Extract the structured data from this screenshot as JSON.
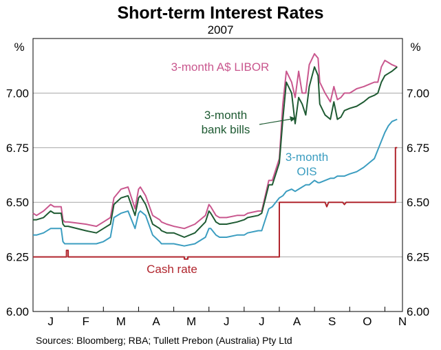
{
  "chart_data": {
    "type": "line",
    "title": "Short-term Interest Rates",
    "subtitle": "2007",
    "y_unit_left": "%",
    "y_unit_right": "%",
    "ylim": [
      6.0,
      7.25
    ],
    "yticks": [
      "6.00",
      "6.25",
      "6.50",
      "6.75",
      "7.00"
    ],
    "xlim": [
      0,
      10.5
    ],
    "xticks": [
      "J",
      "F",
      "M",
      "A",
      "M",
      "J",
      "J",
      "A",
      "S",
      "O",
      "N"
    ],
    "source": "Sources: Bloomberg; RBA; Tullett Prebon (Australia) Pty Ltd",
    "series": [
      {
        "name": "3-month A$ LIBOR",
        "label_lines": [
          "3-month A$ LIBOR"
        ],
        "color": "#c9578e",
        "x": [
          0,
          0.1,
          0.3,
          0.5,
          0.6,
          0.8,
          0.85,
          0.9,
          1.0,
          1.5,
          1.8,
          2.0,
          2.2,
          2.3,
          2.5,
          2.7,
          2.9,
          3.0,
          3.05,
          3.2,
          3.4,
          3.6,
          3.65,
          3.8,
          4.0,
          4.3,
          4.6,
          4.9,
          5.0,
          5.05,
          5.2,
          5.3,
          5.5,
          5.8,
          6.0,
          6.1,
          6.4,
          6.5,
          6.7,
          6.8,
          7.0,
          7.1,
          7.2,
          7.35,
          7.45,
          7.55,
          7.65,
          7.75,
          7.85,
          8.0,
          8.1,
          8.15,
          8.3,
          8.45,
          8.55,
          8.65,
          8.75,
          8.85,
          9.0,
          9.2,
          9.4,
          9.55,
          9.7,
          9.8,
          9.9,
          10.0,
          10.1,
          10.2,
          10.35
        ],
        "values": [
          6.45,
          6.44,
          6.46,
          6.49,
          6.48,
          6.48,
          6.42,
          6.41,
          6.41,
          6.4,
          6.39,
          6.41,
          6.43,
          6.52,
          6.56,
          6.57,
          6.47,
          6.56,
          6.57,
          6.53,
          6.44,
          6.42,
          6.41,
          6.4,
          6.39,
          6.38,
          6.4,
          6.44,
          6.49,
          6.48,
          6.44,
          6.43,
          6.43,
          6.44,
          6.44,
          6.45,
          6.46,
          6.46,
          6.6,
          6.6,
          6.7,
          6.95,
          7.1,
          7.05,
          6.98,
          7.1,
          7.0,
          7.0,
          7.13,
          7.18,
          7.16,
          7.05,
          7.0,
          6.96,
          7.03,
          6.97,
          6.98,
          7.0,
          7.0,
          7.02,
          7.03,
          7.04,
          7.05,
          7.05,
          7.12,
          7.15,
          7.14,
          7.13,
          7.12
        ]
      },
      {
        "name": "3-month bank bills",
        "label_lines": [
          "3-month",
          "bank bills"
        ],
        "color": "#1e5a32",
        "x": [
          0,
          0.1,
          0.3,
          0.5,
          0.6,
          0.8,
          0.85,
          0.9,
          1.0,
          1.5,
          1.8,
          2.0,
          2.2,
          2.3,
          2.5,
          2.7,
          2.9,
          3.0,
          3.05,
          3.2,
          3.4,
          3.6,
          3.65,
          3.8,
          4.0,
          4.3,
          4.6,
          4.9,
          5.0,
          5.05,
          5.2,
          5.3,
          5.5,
          5.8,
          6.0,
          6.1,
          6.4,
          6.5,
          6.7,
          6.8,
          7.0,
          7.1,
          7.2,
          7.35,
          7.45,
          7.55,
          7.65,
          7.75,
          7.85,
          8.0,
          8.1,
          8.15,
          8.3,
          8.45,
          8.55,
          8.65,
          8.75,
          8.85,
          9.0,
          9.2,
          9.4,
          9.55,
          9.7,
          9.8,
          9.9,
          10.0,
          10.1,
          10.2,
          10.35
        ],
        "values": [
          6.42,
          6.42,
          6.43,
          6.46,
          6.45,
          6.45,
          6.4,
          6.39,
          6.39,
          6.37,
          6.36,
          6.38,
          6.4,
          6.49,
          6.52,
          6.53,
          6.44,
          6.52,
          6.53,
          6.49,
          6.4,
          6.38,
          6.37,
          6.36,
          6.36,
          6.34,
          6.36,
          6.41,
          6.46,
          6.45,
          6.41,
          6.4,
          6.4,
          6.41,
          6.42,
          6.43,
          6.44,
          6.45,
          6.58,
          6.58,
          6.68,
          6.88,
          7.05,
          7.0,
          6.86,
          6.98,
          6.95,
          6.9,
          7.03,
          7.12,
          7.08,
          6.95,
          6.9,
          6.88,
          6.96,
          6.88,
          6.89,
          6.92,
          6.93,
          6.94,
          6.96,
          6.98,
          6.99,
          7.0,
          7.05,
          7.08,
          7.09,
          7.1,
          7.12
        ]
      },
      {
        "name": "3-month OIS",
        "label_lines": [
          "3-month",
          "OIS"
        ],
        "color": "#3b9dc0",
        "x": [
          0,
          0.1,
          0.3,
          0.5,
          0.6,
          0.8,
          0.85,
          0.9,
          1.0,
          1.5,
          1.8,
          2.0,
          2.2,
          2.3,
          2.5,
          2.7,
          2.9,
          3.0,
          3.05,
          3.2,
          3.4,
          3.6,
          3.65,
          3.8,
          4.0,
          4.3,
          4.6,
          4.9,
          5.0,
          5.05,
          5.2,
          5.3,
          5.5,
          5.8,
          6.0,
          6.1,
          6.4,
          6.5,
          6.7,
          6.8,
          7.0,
          7.1,
          7.2,
          7.35,
          7.45,
          7.55,
          7.65,
          7.75,
          7.85,
          8.0,
          8.1,
          8.15,
          8.3,
          8.45,
          8.55,
          8.65,
          8.75,
          8.85,
          9.0,
          9.2,
          9.4,
          9.55,
          9.7,
          9.8,
          9.9,
          10.0,
          10.1,
          10.2,
          10.35
        ],
        "values": [
          6.35,
          6.35,
          6.36,
          6.38,
          6.38,
          6.38,
          6.32,
          6.31,
          6.31,
          6.31,
          6.31,
          6.32,
          6.34,
          6.43,
          6.45,
          6.46,
          6.38,
          6.45,
          6.46,
          6.44,
          6.35,
          6.32,
          6.31,
          6.31,
          6.31,
          6.3,
          6.31,
          6.34,
          6.38,
          6.38,
          6.35,
          6.34,
          6.34,
          6.35,
          6.35,
          6.36,
          6.37,
          6.37,
          6.47,
          6.48,
          6.52,
          6.53,
          6.55,
          6.56,
          6.55,
          6.56,
          6.57,
          6.58,
          6.58,
          6.6,
          6.59,
          6.59,
          6.6,
          6.61,
          6.61,
          6.62,
          6.62,
          6.62,
          6.63,
          6.64,
          6.66,
          6.68,
          6.7,
          6.74,
          6.78,
          6.82,
          6.85,
          6.87,
          6.88
        ]
      },
      {
        "name": "Cash rate",
        "label_lines": [
          "Cash rate"
        ],
        "color": "#b0242c",
        "step": true,
        "x": [
          0,
          0.95,
          0.95,
          1.0,
          1.0,
          4.3,
          4.3,
          4.4,
          4.4,
          7.0,
          7.0,
          8.3,
          8.35,
          8.4,
          8.8,
          8.85,
          8.9,
          9.7,
          9.7,
          10.3,
          10.3,
          10.35
        ],
        "values": [
          6.25,
          6.25,
          6.28,
          6.28,
          6.25,
          6.25,
          6.24,
          6.24,
          6.25,
          6.25,
          6.5,
          6.5,
          6.48,
          6.5,
          6.5,
          6.49,
          6.5,
          6.5,
          6.5,
          6.5,
          6.75,
          6.75
        ]
      }
    ]
  }
}
